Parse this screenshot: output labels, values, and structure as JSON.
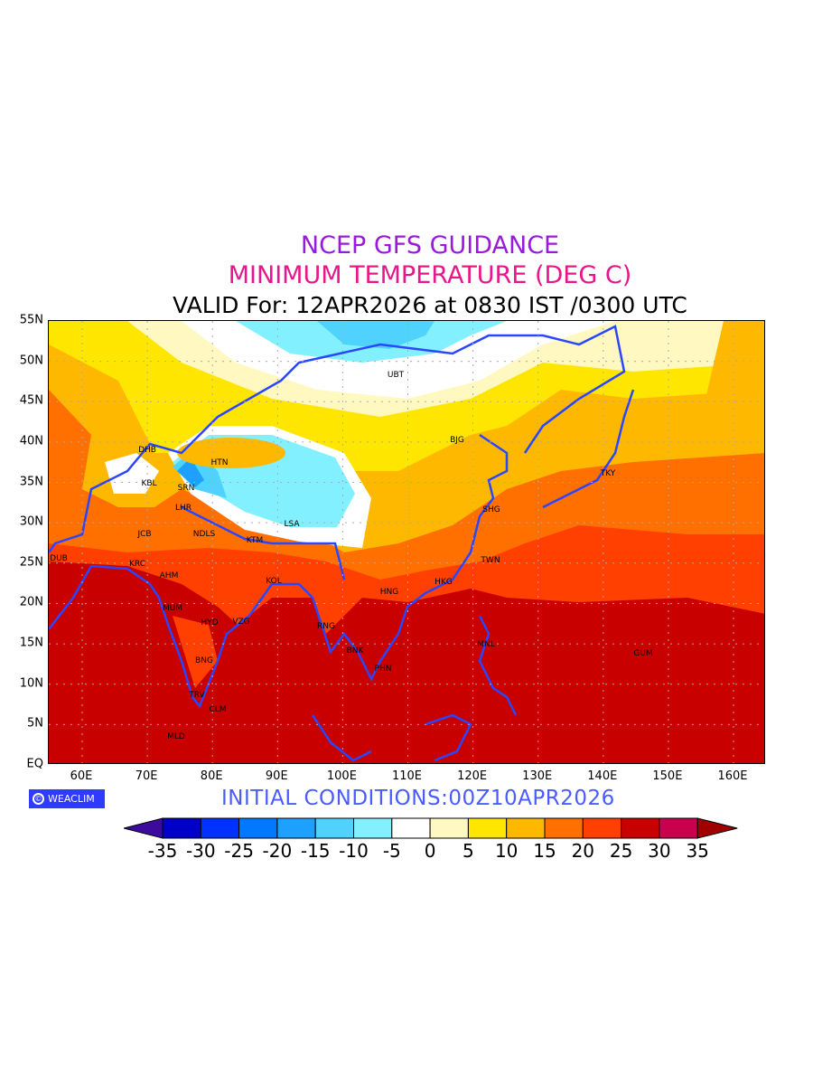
{
  "titles": {
    "line1": "NCEP GFS GUIDANCE",
    "line2": "MINIMUM TEMPERATURE (DEG C)",
    "line3": "VALID For: 12APR2026 at 0830 IST /0300 UTC"
  },
  "initial_conditions": "INITIAL  CONDITIONS:00Z10APR2026",
  "logo": {
    "symbol": "©",
    "text": "WEACLIM"
  },
  "axes": {
    "lat_labels": [
      "EQ",
      "5N",
      "10N",
      "15N",
      "20N",
      "25N",
      "30N",
      "35N",
      "40N",
      "45N",
      "50N",
      "55N"
    ],
    "lon_labels": [
      "60E",
      "70E",
      "80E",
      "90E",
      "100E",
      "110E",
      "120E",
      "130E",
      "140E",
      "150E",
      "160E"
    ]
  },
  "map": {
    "cities": [
      "UBT",
      "BJG",
      "TKY",
      "DHB",
      "HTN",
      "KBL",
      "SRN",
      "LHR",
      "JCB",
      "NDLS",
      "KTM",
      "LSA",
      "SHG",
      "TWN",
      "DUB",
      "KRC",
      "AHM",
      "KOL",
      "HNG",
      "HKG",
      "MUM",
      "HYD",
      "VZG",
      "RNG",
      "BNK",
      "MNL",
      "GUM",
      "PHN",
      "BNG",
      "TRV",
      "CLM",
      "MLD"
    ]
  },
  "colorbar": {
    "labels": [
      "-35",
      "-30",
      "-25",
      "-20",
      "-15",
      "-10",
      "-5",
      "0",
      "5",
      "10",
      "15",
      "20",
      "25",
      "30",
      "35"
    ],
    "under_color": "#3c0a9c",
    "over_color": "#a00000",
    "colors": [
      "#0000c8",
      "#0032ff",
      "#0078ff",
      "#1ea0ff",
      "#50d2ff",
      "#82f0ff",
      "#ffffff",
      "#fff8c0",
      "#ffe600",
      "#ffb800",
      "#ff7000",
      "#ff4000",
      "#c80000",
      "#c8004e"
    ]
  },
  "colors": {
    "coast": "#2a46ff",
    "title1": "#9a1adc",
    "title2": "#e8168c"
  }
}
